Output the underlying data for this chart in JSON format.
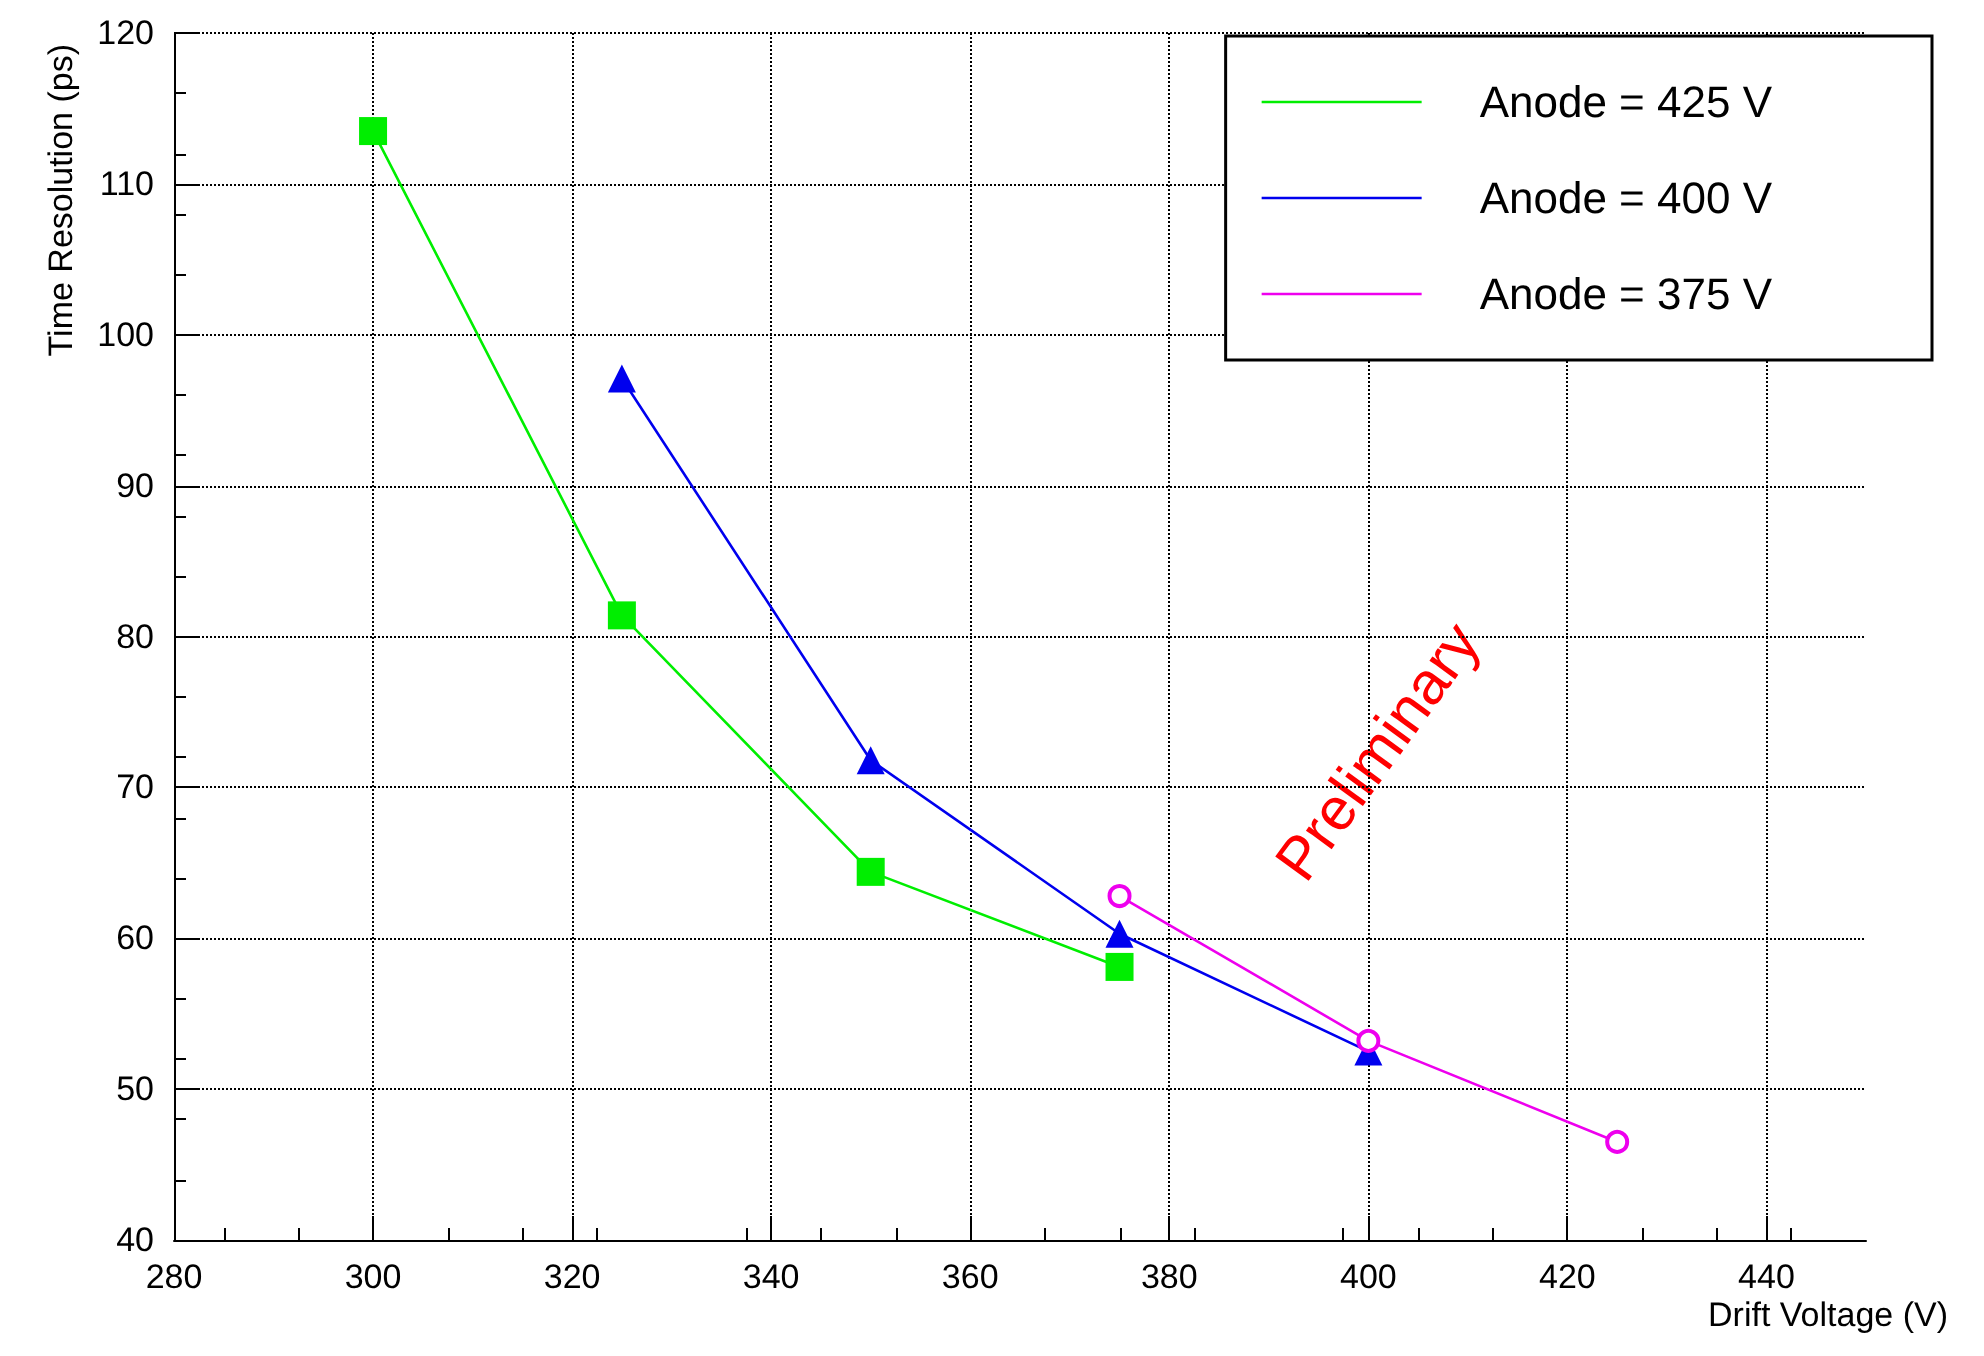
{
  "chart_data": {
    "type": "line",
    "xlabel": "Drift Voltage (V)",
    "ylabel": "Time Resolution (ps)",
    "xlim": [
      280,
      450
    ],
    "ylim": [
      40,
      120
    ],
    "xticks": [
      280,
      300,
      320,
      340,
      360,
      380,
      400,
      420,
      440
    ],
    "yticks": [
      40,
      50,
      60,
      70,
      80,
      90,
      100,
      110,
      120
    ],
    "grid": true,
    "legend": "top right",
    "annotations": [
      "Preliminary"
    ],
    "series": [
      {
        "name": "Anode = 425 V",
        "color": "#00ee00",
        "marker": "square",
        "x": [
          300,
          325,
          350,
          375
        ],
        "values": [
          113.5,
          81.4,
          64.4,
          58.1
        ]
      },
      {
        "name": "Anode = 400 V",
        "color": "#0000ee",
        "marker": "triangle",
        "x": [
          325,
          350,
          375,
          400
        ],
        "values": [
          97.1,
          71.8,
          60.3,
          52.5
        ]
      },
      {
        "name": "Anode = 375 V",
        "color": "#ee00ee",
        "marker": "circle",
        "x": [
          375,
          400,
          425
        ],
        "values": [
          62.8,
          53.2,
          46.5
        ]
      }
    ]
  }
}
